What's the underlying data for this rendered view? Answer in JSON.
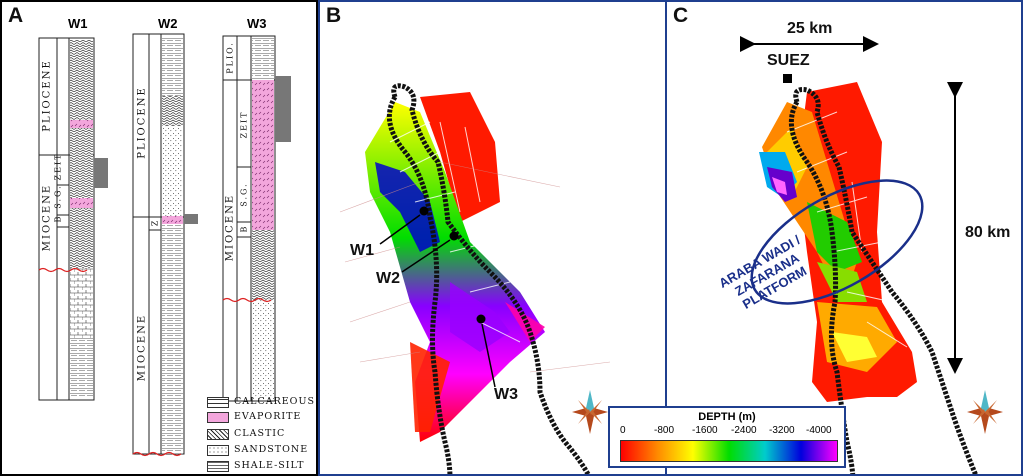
{
  "panel_a": {
    "label": "A",
    "wells": [
      {
        "name": "W1",
        "units": [
          "PLIOCENE",
          "MIOCENE",
          "ZEIT",
          "S.G.",
          "B"
        ]
      },
      {
        "name": "W2",
        "units": [
          "PLIOCENE",
          "MIOCENE",
          "Z"
        ]
      },
      {
        "name": "W3",
        "units": [
          "PLIO.",
          "MIOCENE",
          "ZEIT",
          "S.G.",
          "B"
        ]
      }
    ],
    "legend": [
      "CALCAREOUS",
      "EVAPORITE",
      "CLASTIC",
      "SANDSTONE",
      "SHALE-SILT"
    ]
  },
  "panel_b": {
    "label": "B",
    "well_labels": [
      "W1",
      "W2",
      "W3"
    ]
  },
  "panel_c": {
    "label": "C",
    "scale_horizontal": "25 km",
    "scale_vertical": "80 km",
    "city": "SUEZ",
    "platform_label": [
      "ARABA WADI /",
      "ZAFARANA",
      "PLATFORM"
    ]
  },
  "depth_scale": {
    "title": "DEPTH (m)",
    "ticks": [
      "0",
      "-800",
      "-1600",
      "-2400",
      "-3200",
      "-4000"
    ],
    "colors": [
      "#ff0000",
      "#ff8800",
      "#ffff00",
      "#00dd00",
      "#00cccc",
      "#0000dd",
      "#ff00ff"
    ]
  }
}
